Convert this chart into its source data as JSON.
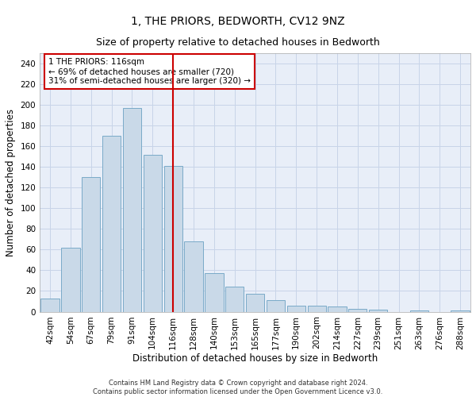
{
  "title": "1, THE PRIORS, BEDWORTH, CV12 9NZ",
  "subtitle": "Size of property relative to detached houses in Bedworth",
  "xlabel": "Distribution of detached houses by size in Bedworth",
  "ylabel": "Number of detached properties",
  "categories": [
    "42sqm",
    "54sqm",
    "67sqm",
    "79sqm",
    "91sqm",
    "104sqm",
    "116sqm",
    "128sqm",
    "140sqm",
    "153sqm",
    "165sqm",
    "177sqm",
    "190sqm",
    "202sqm",
    "214sqm",
    "227sqm",
    "239sqm",
    "251sqm",
    "263sqm",
    "276sqm",
    "288sqm"
  ],
  "values": [
    13,
    62,
    130,
    170,
    197,
    152,
    141,
    68,
    37,
    24,
    17,
    11,
    6,
    6,
    5,
    3,
    2,
    0,
    1,
    0,
    1
  ],
  "bar_color": "#c9d9e8",
  "bar_edge_color": "#7aaac8",
  "vline_x": 6,
  "vline_color": "#cc0000",
  "annotation_text": "1 THE PRIORS: 116sqm\n← 69% of detached houses are smaller (720)\n31% of semi-detached houses are larger (320) →",
  "annotation_box_color": "#ffffff",
  "annotation_box_edge": "#cc0000",
  "ylim": [
    0,
    250
  ],
  "yticks": [
    0,
    20,
    40,
    60,
    80,
    100,
    120,
    140,
    160,
    180,
    200,
    220,
    240
  ],
  "grid_color": "#c8d4e8",
  "bg_color": "#e8eef8",
  "footer": "Contains HM Land Registry data © Crown copyright and database right 2024.\nContains public sector information licensed under the Open Government Licence v3.0.",
  "title_fontsize": 10,
  "subtitle_fontsize": 9,
  "xlabel_fontsize": 8.5,
  "ylabel_fontsize": 8.5,
  "tick_fontsize": 7.5,
  "annotation_fontsize": 7.5,
  "footer_fontsize": 6
}
